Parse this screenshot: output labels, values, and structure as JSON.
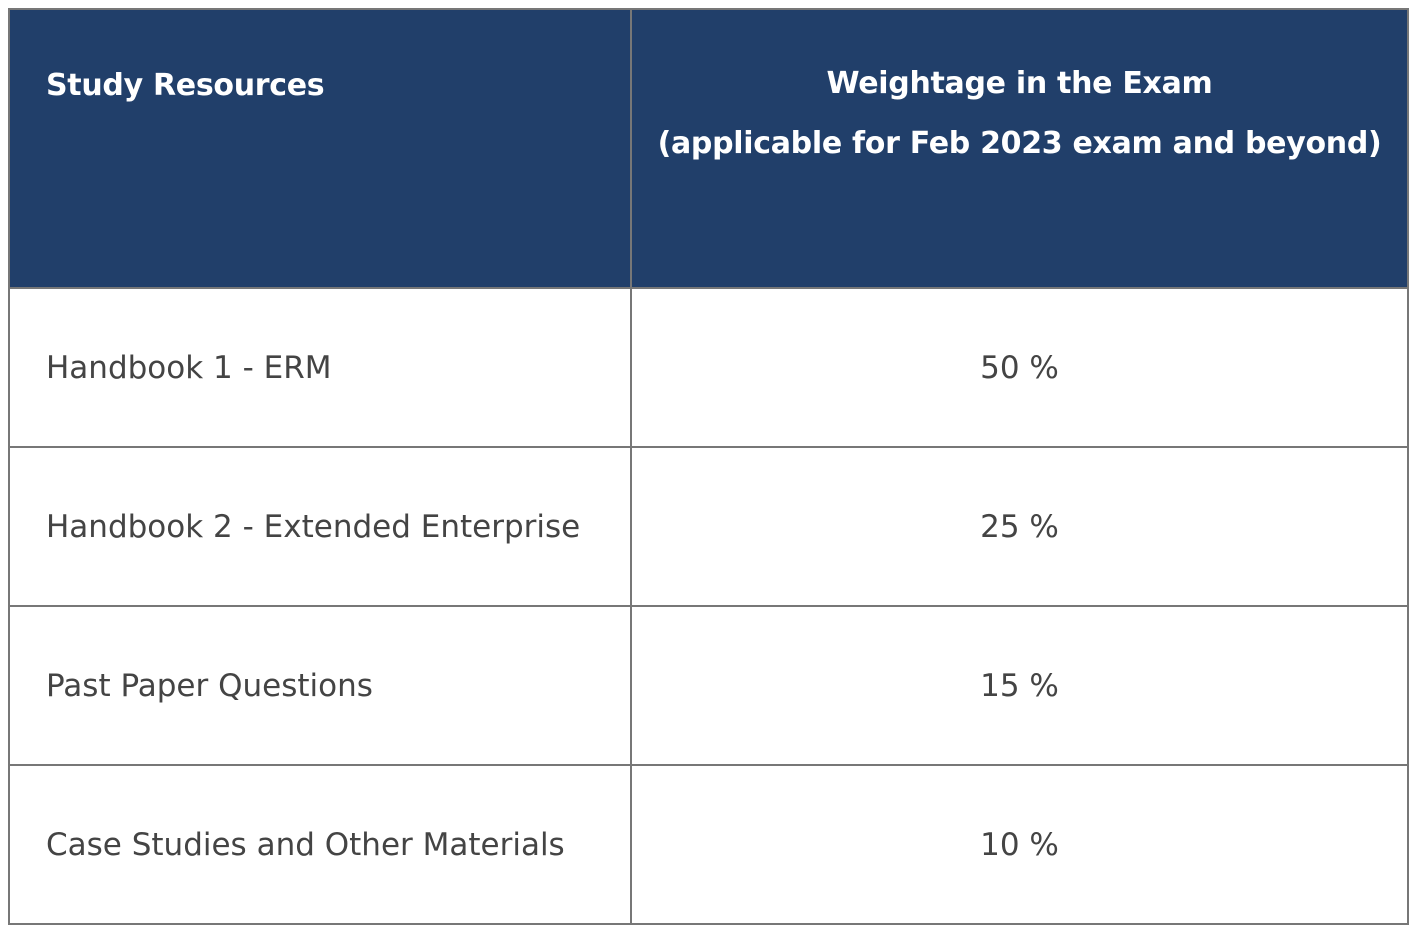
{
  "table": {
    "header": {
      "resource_label": "Study Resources",
      "weight_label_line1": "Weightage in the Exam",
      "weight_label_line2": "(applicable for Feb 2023 exam and beyond)"
    },
    "rows": [
      {
        "resource": "Handbook 1 - ERM",
        "weight": "50 %"
      },
      {
        "resource": "Handbook 2 - Extended Enterprise",
        "weight": "25 %"
      },
      {
        "resource": "Past Paper Questions",
        "weight": "15 %"
      },
      {
        "resource": "Case Studies and Other Materials",
        "weight": "10 %"
      }
    ]
  },
  "colors": {
    "header_background": "#213f6a",
    "header_text": "#ffffff",
    "body_text": "#444444",
    "border": "#777777"
  }
}
